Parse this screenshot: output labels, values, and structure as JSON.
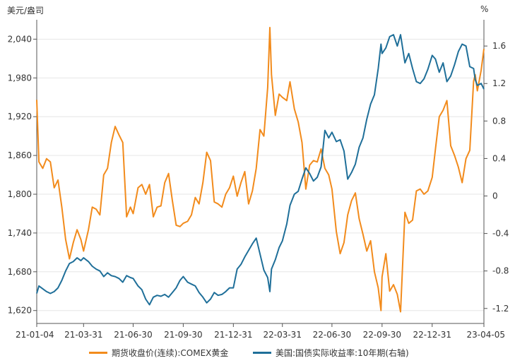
{
  "chart_data": {
    "type": "line",
    "left_unit": "美元/盎司",
    "right_unit": "%",
    "x_ticks": [
      "21-01-04",
      "21-03-31",
      "21-06-30",
      "21-09-30",
      "21-12-31",
      "22-03-31",
      "22-06-30",
      "22-09-30",
      "22-12-31",
      "23-04-05"
    ],
    "y_left": {
      "ticks": [
        "1,620",
        "1,680",
        "1,740",
        "1,800",
        "1,860",
        "1,920",
        "1,980",
        "2,040"
      ],
      "lim": [
        1600,
        2070
      ]
    },
    "y_right": {
      "ticks": [
        "-1.2",
        "-0.8",
        "-0.4",
        "0",
        "0.4",
        "0.8",
        "1.2",
        "1.6"
      ],
      "lim": [
        -1.36,
        1.88
      ]
    },
    "series": [
      {
        "name": "期货收盘价(连续):COMEX黄金",
        "axis": "left",
        "color": "#f28b1c",
        "points": [
          [
            "2021-01-04",
            1946
          ],
          [
            "2021-01-08",
            1850
          ],
          [
            "2021-01-15",
            1840
          ],
          [
            "2021-01-22",
            1855
          ],
          [
            "2021-01-29",
            1850
          ],
          [
            "2021-02-05",
            1810
          ],
          [
            "2021-02-12",
            1822
          ],
          [
            "2021-02-19",
            1780
          ],
          [
            "2021-02-26",
            1730
          ],
          [
            "2021-03-05",
            1700
          ],
          [
            "2021-03-12",
            1725
          ],
          [
            "2021-03-19",
            1745
          ],
          [
            "2021-03-26",
            1730
          ],
          [
            "2021-03-31",
            1712
          ],
          [
            "2021-04-09",
            1745
          ],
          [
            "2021-04-16",
            1780
          ],
          [
            "2021-04-23",
            1777
          ],
          [
            "2021-04-30",
            1768
          ],
          [
            "2021-05-07",
            1830
          ],
          [
            "2021-05-14",
            1840
          ],
          [
            "2021-05-21",
            1880
          ],
          [
            "2021-05-28",
            1905
          ],
          [
            "2021-06-04",
            1892
          ],
          [
            "2021-06-11",
            1880
          ],
          [
            "2021-06-18",
            1765
          ],
          [
            "2021-06-25",
            1780
          ],
          [
            "2021-06-30",
            1770
          ],
          [
            "2021-07-09",
            1810
          ],
          [
            "2021-07-16",
            1815
          ],
          [
            "2021-07-23",
            1800
          ],
          [
            "2021-07-30",
            1815
          ],
          [
            "2021-08-06",
            1765
          ],
          [
            "2021-08-13",
            1780
          ],
          [
            "2021-08-20",
            1782
          ],
          [
            "2021-08-27",
            1818
          ],
          [
            "2021-09-03",
            1832
          ],
          [
            "2021-09-10",
            1790
          ],
          [
            "2021-09-17",
            1752
          ],
          [
            "2021-09-24",
            1750
          ],
          [
            "2021-09-30",
            1755
          ],
          [
            "2021-10-08",
            1758
          ],
          [
            "2021-10-15",
            1768
          ],
          [
            "2021-10-22",
            1795
          ],
          [
            "2021-10-29",
            1785
          ],
          [
            "2021-11-05",
            1818
          ],
          [
            "2021-11-12",
            1865
          ],
          [
            "2021-11-19",
            1852
          ],
          [
            "2021-11-26",
            1788
          ],
          [
            "2021-12-03",
            1785
          ],
          [
            "2021-12-10",
            1780
          ],
          [
            "2021-12-17",
            1800
          ],
          [
            "2021-12-24",
            1810
          ],
          [
            "2021-12-31",
            1828
          ],
          [
            "2022-01-07",
            1797
          ],
          [
            "2022-01-14",
            1818
          ],
          [
            "2022-01-21",
            1835
          ],
          [
            "2022-01-28",
            1785
          ],
          [
            "2022-02-04",
            1805
          ],
          [
            "2022-02-11",
            1840
          ],
          [
            "2022-02-18",
            1900
          ],
          [
            "2022-02-25",
            1890
          ],
          [
            "2022-03-04",
            1965
          ],
          [
            "2022-03-08",
            2058
          ],
          [
            "2022-03-11",
            1985
          ],
          [
            "2022-03-18",
            1922
          ],
          [
            "2022-03-25",
            1955
          ],
          [
            "2022-03-31",
            1950
          ],
          [
            "2022-04-08",
            1945
          ],
          [
            "2022-04-14",
            1974
          ],
          [
            "2022-04-22",
            1932
          ],
          [
            "2022-04-29",
            1912
          ],
          [
            "2022-05-06",
            1880
          ],
          [
            "2022-05-13",
            1808
          ],
          [
            "2022-05-20",
            1845
          ],
          [
            "2022-05-27",
            1852
          ],
          [
            "2022-06-03",
            1850
          ],
          [
            "2022-06-10",
            1870
          ],
          [
            "2022-06-17",
            1840
          ],
          [
            "2022-06-24",
            1830
          ],
          [
            "2022-06-30",
            1808
          ],
          [
            "2022-07-08",
            1742
          ],
          [
            "2022-07-15",
            1708
          ],
          [
            "2022-07-22",
            1725
          ],
          [
            "2022-07-29",
            1768
          ],
          [
            "2022-08-05",
            1790
          ],
          [
            "2022-08-12",
            1802
          ],
          [
            "2022-08-19",
            1762
          ],
          [
            "2022-08-26",
            1738
          ],
          [
            "2022-09-02",
            1712
          ],
          [
            "2022-09-09",
            1728
          ],
          [
            "2022-09-16",
            1680
          ],
          [
            "2022-09-23",
            1655
          ],
          [
            "2022-09-28",
            1620
          ],
          [
            "2022-09-30",
            1672
          ],
          [
            "2022-10-07",
            1708
          ],
          [
            "2022-10-14",
            1650
          ],
          [
            "2022-10-21",
            1660
          ],
          [
            "2022-10-28",
            1645
          ],
          [
            "2022-11-03",
            1618
          ],
          [
            "2022-11-11",
            1772
          ],
          [
            "2022-11-18",
            1755
          ],
          [
            "2022-11-25",
            1760
          ],
          [
            "2022-12-02",
            1805
          ],
          [
            "2022-12-09",
            1808
          ],
          [
            "2022-12-16",
            1800
          ],
          [
            "2022-12-23",
            1805
          ],
          [
            "2022-12-31",
            1826
          ],
          [
            "2023-01-06",
            1870
          ],
          [
            "2023-01-13",
            1920
          ],
          [
            "2023-01-20",
            1930
          ],
          [
            "2023-01-27",
            1945
          ],
          [
            "2023-02-03",
            1875
          ],
          [
            "2023-02-10",
            1860
          ],
          [
            "2023-02-17",
            1842
          ],
          [
            "2023-02-24",
            1818
          ],
          [
            "2023-03-03",
            1855
          ],
          [
            "2023-03-10",
            1868
          ],
          [
            "2023-03-17",
            1975
          ],
          [
            "2023-03-20",
            1985
          ],
          [
            "2023-03-24",
            1960
          ],
          [
            "2023-03-31",
            1992
          ],
          [
            "2023-04-05",
            2025
          ]
        ]
      },
      {
        "name": "美国:国债实际收益率:10年期(右轴)",
        "axis": "right",
        "color": "#1f6f99",
        "points": [
          [
            "2021-01-04",
            -1.04
          ],
          [
            "2021-01-08",
            -0.96
          ],
          [
            "2021-01-15",
            -0.99
          ],
          [
            "2021-01-22",
            -1.02
          ],
          [
            "2021-01-29",
            -1.04
          ],
          [
            "2021-02-05",
            -1.02
          ],
          [
            "2021-02-12",
            -0.98
          ],
          [
            "2021-02-19",
            -0.9
          ],
          [
            "2021-02-26",
            -0.8
          ],
          [
            "2021-03-05",
            -0.72
          ],
          [
            "2021-03-12",
            -0.7
          ],
          [
            "2021-03-19",
            -0.66
          ],
          [
            "2021-03-26",
            -0.69
          ],
          [
            "2021-03-31",
            -0.66
          ],
          [
            "2021-04-09",
            -0.7
          ],
          [
            "2021-04-16",
            -0.75
          ],
          [
            "2021-04-23",
            -0.78
          ],
          [
            "2021-04-30",
            -0.8
          ],
          [
            "2021-05-07",
            -0.86
          ],
          [
            "2021-05-14",
            -0.82
          ],
          [
            "2021-05-21",
            -0.85
          ],
          [
            "2021-05-28",
            -0.86
          ],
          [
            "2021-06-04",
            -0.88
          ],
          [
            "2021-06-11",
            -0.92
          ],
          [
            "2021-06-18",
            -0.85
          ],
          [
            "2021-06-25",
            -0.87
          ],
          [
            "2021-06-30",
            -0.88
          ],
          [
            "2021-07-09",
            -0.96
          ],
          [
            "2021-07-16",
            -1.0
          ],
          [
            "2021-07-23",
            -1.1
          ],
          [
            "2021-07-30",
            -1.16
          ],
          [
            "2021-08-06",
            -1.08
          ],
          [
            "2021-08-13",
            -1.06
          ],
          [
            "2021-08-20",
            -1.07
          ],
          [
            "2021-08-27",
            -1.05
          ],
          [
            "2021-09-03",
            -1.08
          ],
          [
            "2021-09-10",
            -1.03
          ],
          [
            "2021-09-17",
            -0.98
          ],
          [
            "2021-09-24",
            -0.9
          ],
          [
            "2021-09-30",
            -0.86
          ],
          [
            "2021-10-08",
            -0.92
          ],
          [
            "2021-10-15",
            -0.94
          ],
          [
            "2021-10-22",
            -0.96
          ],
          [
            "2021-10-29",
            -1.03
          ],
          [
            "2021-11-05",
            -1.08
          ],
          [
            "2021-11-12",
            -1.14
          ],
          [
            "2021-11-19",
            -1.1
          ],
          [
            "2021-11-26",
            -1.03
          ],
          [
            "2021-12-03",
            -1.06
          ],
          [
            "2021-12-10",
            -1.05
          ],
          [
            "2021-12-17",
            -1.02
          ],
          [
            "2021-12-24",
            -0.98
          ],
          [
            "2021-12-31",
            -0.98
          ],
          [
            "2022-01-07",
            -0.78
          ],
          [
            "2022-01-14",
            -0.73
          ],
          [
            "2022-01-21",
            -0.65
          ],
          [
            "2022-01-28",
            -0.58
          ],
          [
            "2022-02-04",
            -0.51
          ],
          [
            "2022-02-11",
            -0.45
          ],
          [
            "2022-02-18",
            -0.62
          ],
          [
            "2022-02-25",
            -0.79
          ],
          [
            "2022-03-04",
            -0.87
          ],
          [
            "2022-03-08",
            -1.02
          ],
          [
            "2022-03-11",
            -0.78
          ],
          [
            "2022-03-18",
            -0.68
          ],
          [
            "2022-03-25",
            -0.55
          ],
          [
            "2022-03-31",
            -0.48
          ],
          [
            "2022-04-08",
            -0.3
          ],
          [
            "2022-04-14",
            -0.1
          ],
          [
            "2022-04-22",
            0.02
          ],
          [
            "2022-04-29",
            0.05
          ],
          [
            "2022-05-06",
            0.18
          ],
          [
            "2022-05-13",
            0.3
          ],
          [
            "2022-05-20",
            0.24
          ],
          [
            "2022-05-27",
            0.16
          ],
          [
            "2022-06-03",
            0.2
          ],
          [
            "2022-06-10",
            0.31
          ],
          [
            "2022-06-17",
            0.7
          ],
          [
            "2022-06-24",
            0.62
          ],
          [
            "2022-06-30",
            0.68
          ],
          [
            "2022-07-08",
            0.58
          ],
          [
            "2022-07-15",
            0.6
          ],
          [
            "2022-07-22",
            0.48
          ],
          [
            "2022-07-29",
            0.18
          ],
          [
            "2022-08-05",
            0.25
          ],
          [
            "2022-08-12",
            0.34
          ],
          [
            "2022-08-19",
            0.52
          ],
          [
            "2022-08-26",
            0.62
          ],
          [
            "2022-09-02",
            0.82
          ],
          [
            "2022-09-09",
            0.98
          ],
          [
            "2022-09-16",
            1.08
          ],
          [
            "2022-09-23",
            1.36
          ],
          [
            "2022-09-28",
            1.62
          ],
          [
            "2022-09-30",
            1.52
          ],
          [
            "2022-10-07",
            1.58
          ],
          [
            "2022-10-14",
            1.7
          ],
          [
            "2022-10-21",
            1.72
          ],
          [
            "2022-10-28",
            1.6
          ],
          [
            "2022-11-03",
            1.72
          ],
          [
            "2022-11-11",
            1.42
          ],
          [
            "2022-11-18",
            1.52
          ],
          [
            "2022-11-25",
            1.36
          ],
          [
            "2022-12-02",
            1.22
          ],
          [
            "2022-12-09",
            1.2
          ],
          [
            "2022-12-16",
            1.25
          ],
          [
            "2022-12-23",
            1.35
          ],
          [
            "2022-12-31",
            1.5
          ],
          [
            "2023-01-06",
            1.46
          ],
          [
            "2023-01-13",
            1.32
          ],
          [
            "2023-01-20",
            1.42
          ],
          [
            "2023-01-27",
            1.22
          ],
          [
            "2023-02-03",
            1.28
          ],
          [
            "2023-02-10",
            1.4
          ],
          [
            "2023-02-17",
            1.54
          ],
          [
            "2023-02-24",
            1.62
          ],
          [
            "2023-03-03",
            1.6
          ],
          [
            "2023-03-10",
            1.38
          ],
          [
            "2023-03-17",
            1.36
          ],
          [
            "2023-03-20",
            1.24
          ],
          [
            "2023-03-24",
            1.18
          ],
          [
            "2023-03-31",
            1.2
          ],
          [
            "2023-04-05",
            1.14
          ]
        ]
      }
    ]
  }
}
